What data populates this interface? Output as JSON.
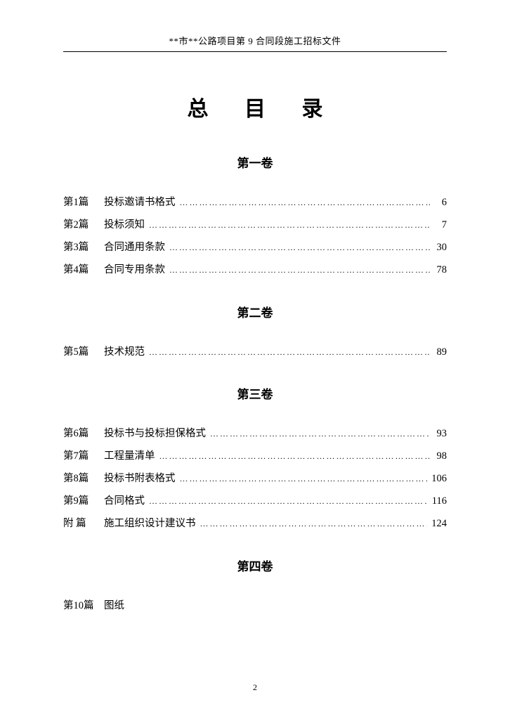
{
  "header": "**市**公路项目第 9 合同段施工招标文件",
  "main_title": {
    "c1": "总",
    "c2": "目",
    "c3": "录"
  },
  "page_number": "2",
  "volumes": [
    {
      "heading": "第一卷",
      "entries": [
        {
          "chapter": "第1篇",
          "title": "投标邀请书格式",
          "page": "6",
          "has_page": true
        },
        {
          "chapter": "第2篇",
          "title": "投标须知",
          "page": "7",
          "has_page": true
        },
        {
          "chapter": "第3篇",
          "title": "合同通用条款",
          "page": "30",
          "has_page": true
        },
        {
          "chapter": "第4篇",
          "title": "合同专用条款",
          "page": "78",
          "has_page": true
        }
      ]
    },
    {
      "heading": "第二卷",
      "entries": [
        {
          "chapter": "第5篇",
          "title": "技术规范",
          "page": "89",
          "has_page": true
        }
      ]
    },
    {
      "heading": "第三卷",
      "entries": [
        {
          "chapter": "第6篇",
          "title": "投标书与投标担保格式",
          "page": "93",
          "has_page": true
        },
        {
          "chapter": "第7篇",
          "title": "工程量清单",
          "page": "98",
          "has_page": true
        },
        {
          "chapter": "第8篇",
          "title": "投标书附表格式",
          "page": "106",
          "has_page": true
        },
        {
          "chapter": "第9篇",
          "title": "合同格式",
          "page": "116",
          "has_page": true
        },
        {
          "chapter": "附 篇",
          "title": "施工组织设计建议书",
          "page": "124",
          "has_page": true
        }
      ]
    },
    {
      "heading": "第四卷",
      "entries": [
        {
          "chapter": "第10篇",
          "title": "图纸",
          "page": "",
          "has_page": false
        }
      ]
    }
  ]
}
